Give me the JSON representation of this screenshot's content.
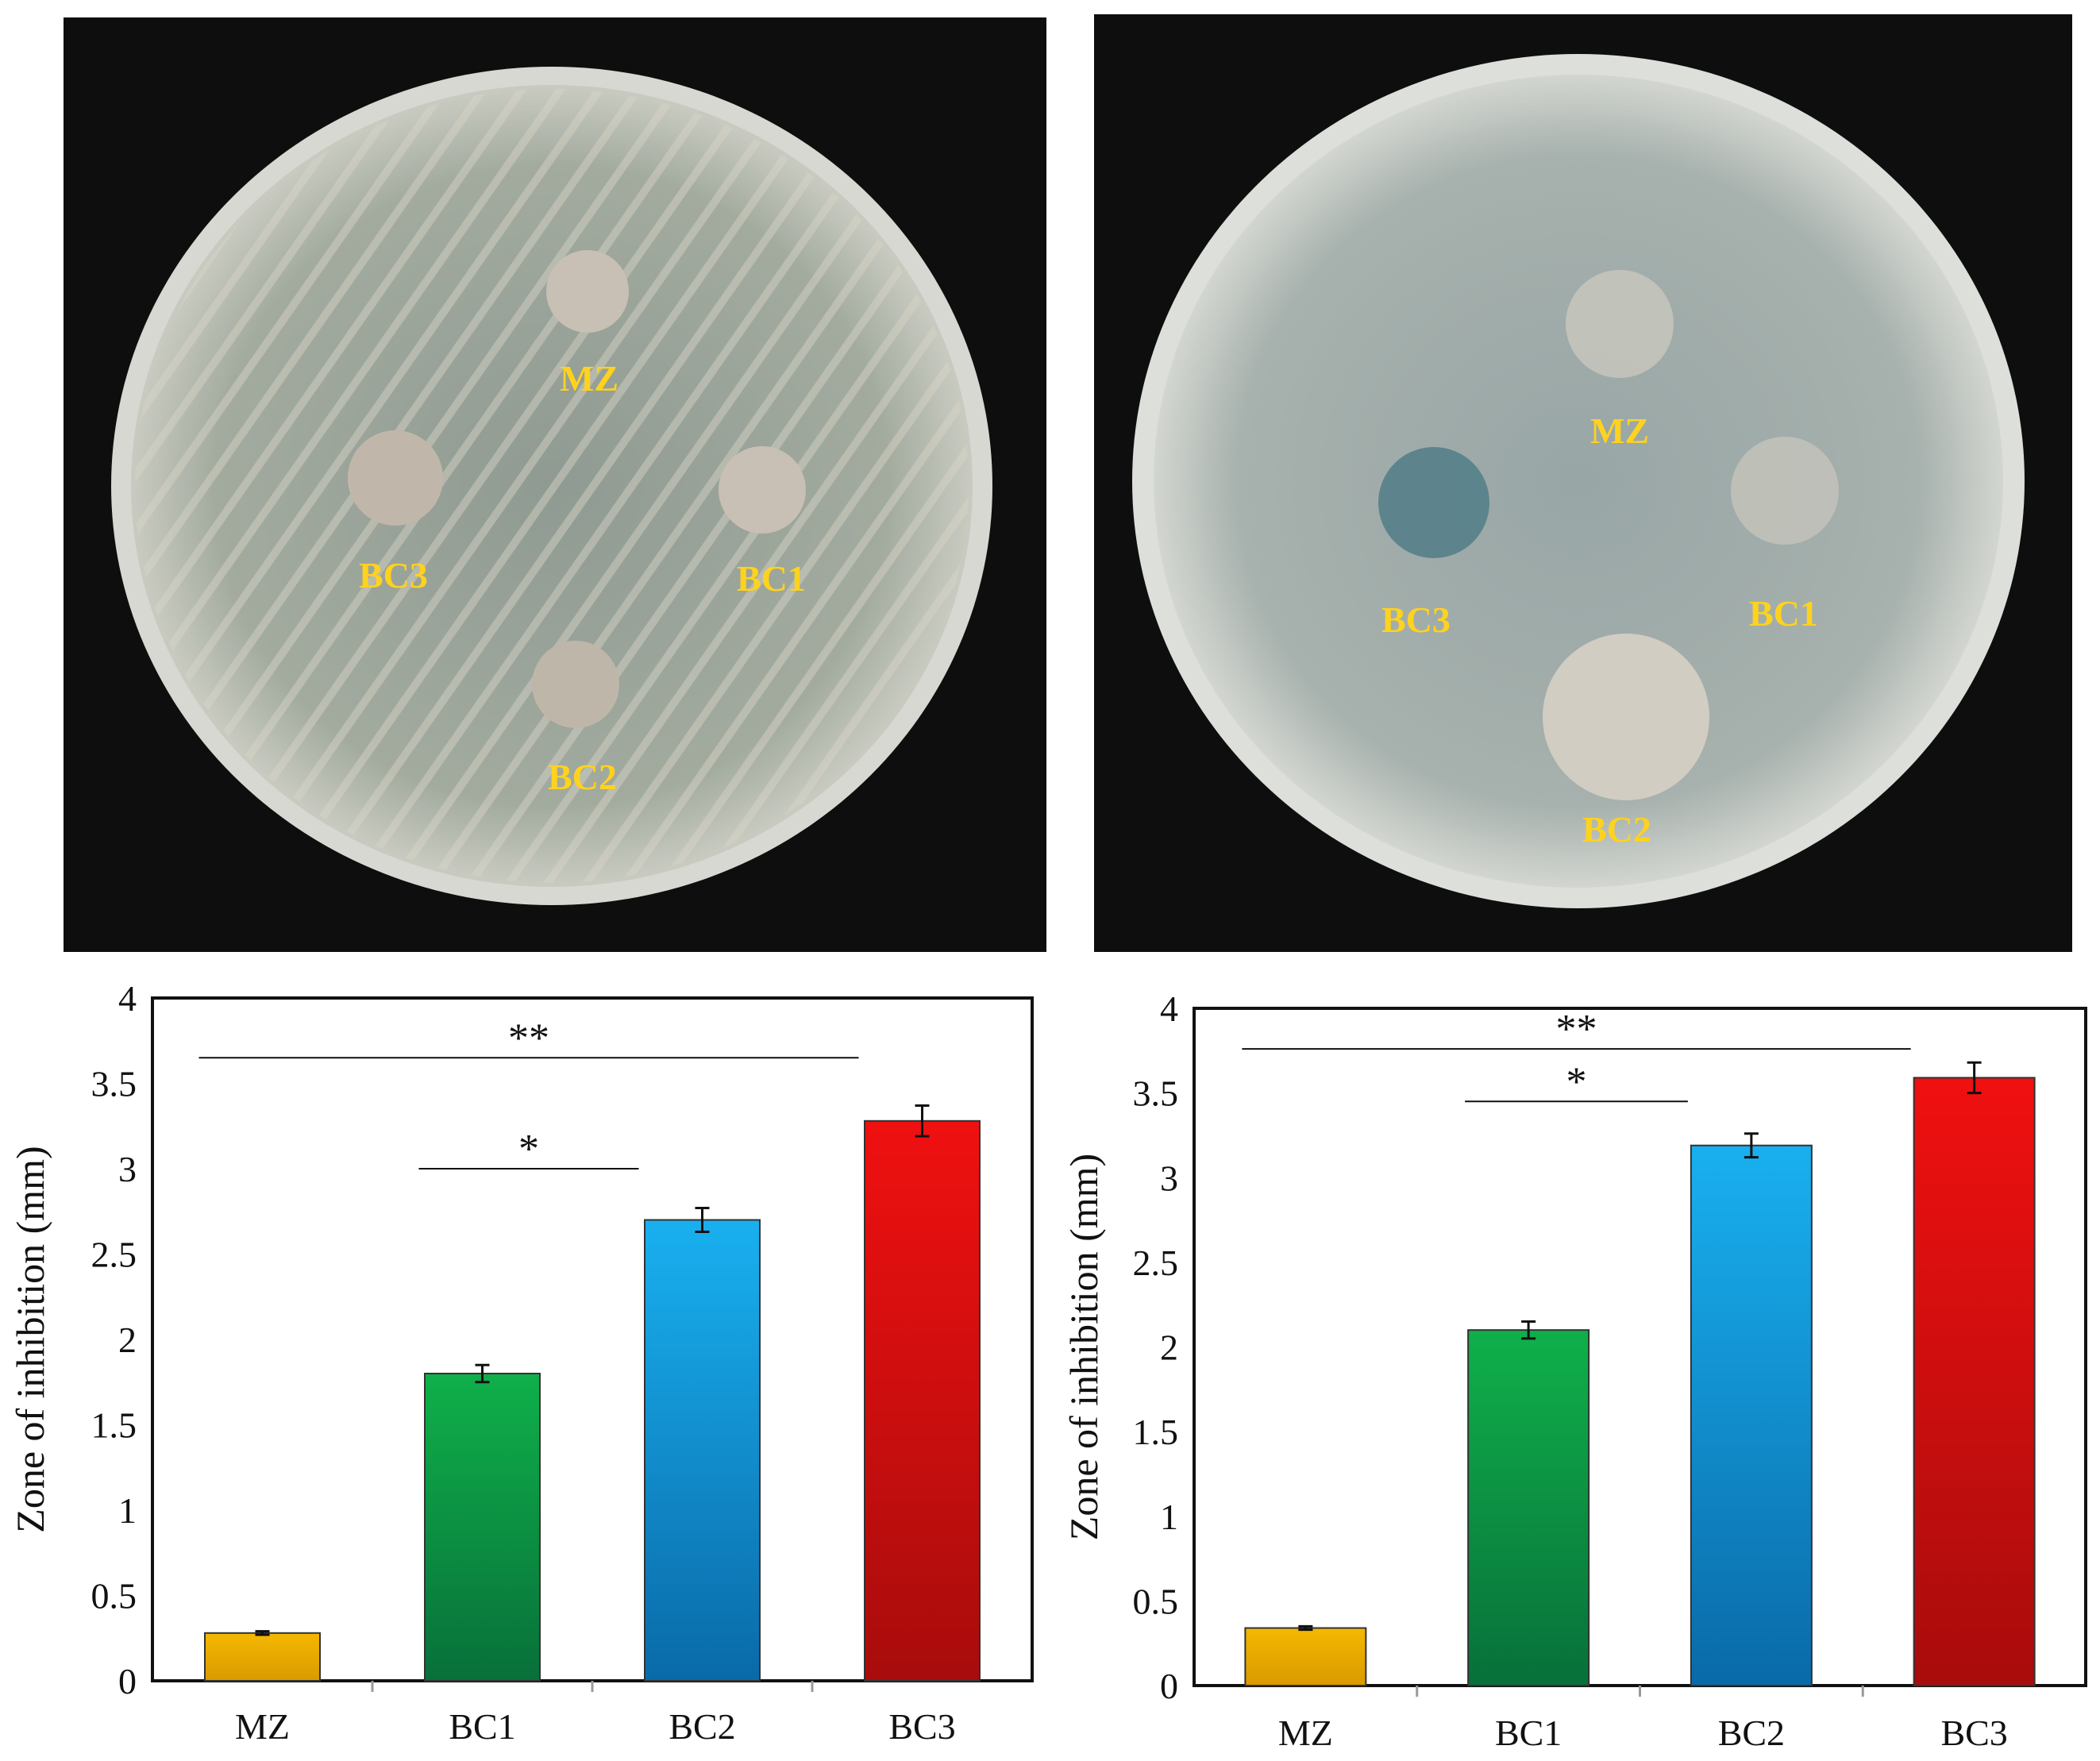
{
  "photos": [
    {
      "labels": [
        "MZ",
        "BC1",
        "BC2",
        "BC3"
      ],
      "label_color": "#ffd21e"
    },
    {
      "labels": [
        "MZ",
        "BC1",
        "BC2",
        "BC3"
      ],
      "label_color": "#ffd21e"
    }
  ],
  "chart_data": [
    {
      "type": "bar",
      "categories": [
        "MZ",
        "BC1",
        "BC2",
        "BC3"
      ],
      "values": [
        0.28,
        1.8,
        2.7,
        3.28
      ],
      "errors": [
        0.01,
        0.05,
        0.07,
        0.09
      ],
      "bar_colors": [
        "#f5b800",
        "#0fb04a",
        "#19b0f0",
        "#f01010"
      ],
      "bar_colors_dark": [
        "#d99a00",
        "#08703a",
        "#0a6aa8",
        "#a80c0c"
      ],
      "ylabel": "Zone of inhibition (mm)",
      "ylim": [
        0,
        4
      ],
      "yticks": [
        "0",
        "0.5",
        "1",
        "1.5",
        "2",
        "2.5",
        "3",
        "3.5",
        "4"
      ],
      "grid": false,
      "significance": [
        {
          "from": 0,
          "to": 3,
          "label": "**",
          "y": 3.65
        },
        {
          "from": 1,
          "to": 2,
          "label": "*",
          "y": 3.0
        }
      ]
    },
    {
      "type": "bar",
      "categories": [
        "MZ",
        "BC1",
        "BC2",
        "BC3"
      ],
      "values": [
        0.34,
        2.1,
        3.19,
        3.59
      ],
      "errors": [
        0.01,
        0.05,
        0.07,
        0.09
      ],
      "bar_colors": [
        "#f5b800",
        "#0fb04a",
        "#19b0f0",
        "#f01010"
      ],
      "bar_colors_dark": [
        "#d99a00",
        "#08703a",
        "#0a6aa8",
        "#a80c0c"
      ],
      "ylabel": "Zone of inhibition (mm)",
      "ylim": [
        0,
        4
      ],
      "yticks": [
        "0",
        "0.5",
        "1",
        "1.5",
        "2",
        "2.5",
        "3",
        "3.5",
        "4"
      ],
      "grid": false,
      "significance": [
        {
          "from": 0,
          "to": 3,
          "label": "**",
          "y": 3.76
        },
        {
          "from": 1,
          "to": 2,
          "label": "*",
          "y": 3.45
        }
      ]
    }
  ]
}
